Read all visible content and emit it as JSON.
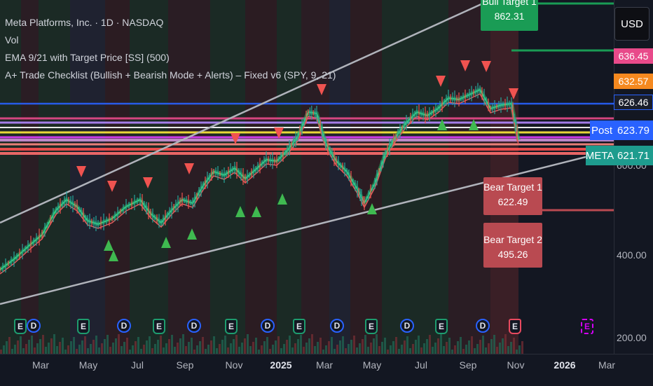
{
  "legend": {
    "title": "Meta Platforms, Inc. · 1D · NASDAQ",
    "vol": "Vol",
    "ema": "EMA 9/21 with Target Price [SS] (500)",
    "checklist": "A+ Trade Checklist (Bullish + Bearish Mode + Alerts) – Fixed v6 (SPY, 9, 21)"
  },
  "currency": "USD",
  "price_tags": {
    "p1": "636.45",
    "p2": "632.57",
    "p3": "626.46",
    "post_label": "Post",
    "post_value": "623.79",
    "meta_label": "META",
    "meta_value": "621.71"
  },
  "price_ticks": [
    "600.00",
    "400.00",
    "200.00"
  ],
  "targets": {
    "bull1_label": "Bull Target 1",
    "bull1_value": "862.31",
    "bear1_label": "Bear Target 1",
    "bear1_value": "622.49",
    "bear2_label": "Bear Target 2",
    "bear2_value": "495.26"
  },
  "time_axis": [
    "Mar",
    "May",
    "Jul",
    "Sep",
    "Nov",
    "2025",
    "Mar",
    "May",
    "Jul",
    "Sep",
    "Nov",
    "2026",
    "Mar"
  ],
  "event_markers": {
    "earnings": "E",
    "dividend": "D"
  },
  "colors": {
    "background": "#131722",
    "bull": "#26a65b",
    "bear": "#f05350",
    "blue_line": "#2962ff",
    "post": "#2962ff",
    "meta": "#1e9c8e",
    "tag_pink": "#e84a8a",
    "tag_orange": "#f5891f"
  }
}
